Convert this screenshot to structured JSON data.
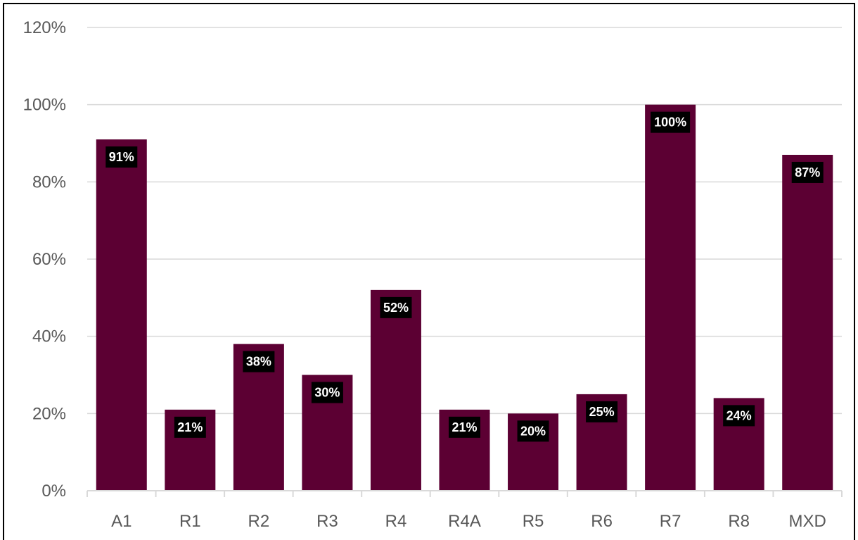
{
  "chart_data": {
    "type": "bar",
    "title": "",
    "xlabel": "",
    "ylabel": "",
    "categories": [
      "A1",
      "R1",
      "R2",
      "R3",
      "R4",
      "R4A",
      "R5",
      "R6",
      "R7",
      "R8",
      "MXD"
    ],
    "values": [
      91,
      21,
      38,
      30,
      52,
      21,
      20,
      25,
      100,
      24,
      87
    ],
    "data_labels": [
      "91%",
      "21%",
      "38%",
      "30%",
      "52%",
      "21%",
      "20%",
      "25%",
      "100%",
      "24%",
      "87%"
    ],
    "ylim": [
      0,
      120
    ],
    "y_ticks": [
      0,
      20,
      40,
      60,
      80,
      100,
      120
    ],
    "y_tick_labels": [
      "0%",
      "20%",
      "40%",
      "60%",
      "80%",
      "100%",
      "120%"
    ],
    "grid": true,
    "legend": "none",
    "bar_color": "#5c0033",
    "label_bg_color": "#000000",
    "grid_color": "#d9d9d9"
  }
}
